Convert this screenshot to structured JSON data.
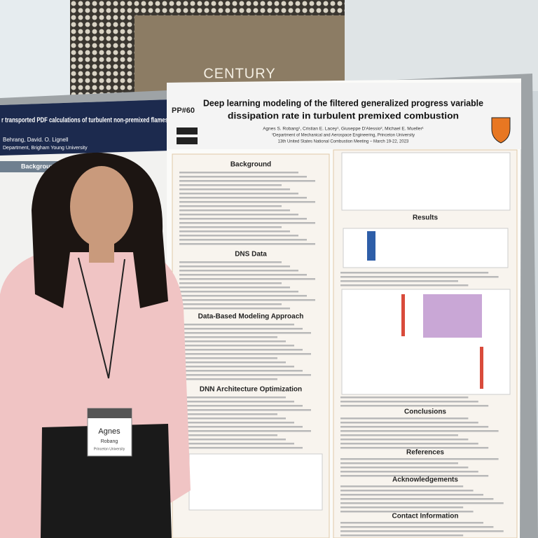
{
  "sign": "CENTURY",
  "left_poster": {
    "title": "r transported PDF calculations of turbulent non-premixed flames",
    "authors": "Behrang, David. O. Lignell",
    "affiliation": "Department, Brigham Young University",
    "section": "Background"
  },
  "poster": {
    "id": "PP#60",
    "title": [
      "Deep learning modeling of the filtered generalized progress variable",
      "dissipation rate in turbulent premixed combustion"
    ],
    "authors": "Agnes S. Robang¹, Cristian E. Lacey¹, Giuseppe D'Alessio², Michael E. Mueller¹",
    "affiliation": "¹Department of Mechanical and Aerospace Engineering, Princeton University",
    "conference": "13th United States National Combustion Meeting – March 19-22, 2023",
    "left_sections": [
      "Background",
      "DNS Data",
      "Data-Based Modeling Approach",
      "DNN Architecture Optimization"
    ],
    "right_sections": [
      "Results",
      "Conclusions",
      "References",
      "Acknowledgements",
      "Contact Information"
    ]
  },
  "badge": {
    "first_name": "Agnes",
    "last_name": "Robang",
    "institution": "Princeton University"
  }
}
